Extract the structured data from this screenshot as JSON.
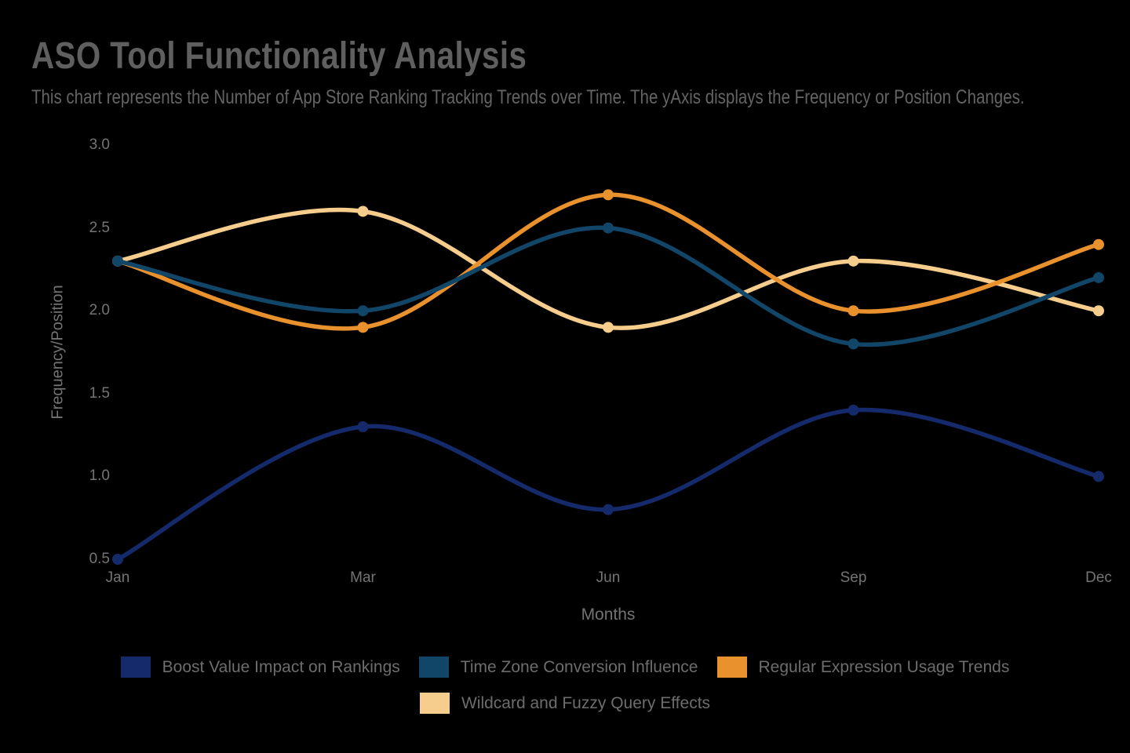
{
  "chart_data": {
    "type": "line",
    "title": "ASO Tool Functionality Analysis",
    "subtitle": "This chart represents the Number of App Store Ranking Tracking Trends over Time. The yAxis displays the Frequency or Position Changes.",
    "xlabel": "Months",
    "ylabel": "Frequency/Position",
    "categories": [
      "Jan",
      "Mar",
      "Jun",
      "Sep",
      "Dec"
    ],
    "series": [
      {
        "name": "Boost Value Impact on Rankings",
        "color": "#152A6B",
        "values": [
          0.5,
          1.3,
          0.8,
          1.4,
          1.0
        ]
      },
      {
        "name": "Time Zone Conversion Influence",
        "color": "#114668",
        "values": [
          2.3,
          2.0,
          2.5,
          1.8,
          2.2
        ]
      },
      {
        "name": "Regular Expression Usage Trends",
        "color": "#E8912D",
        "values": [
          2.3,
          1.9,
          2.7,
          2.0,
          2.4
        ]
      },
      {
        "name": "Wildcard and Fuzzy Query Effects",
        "color": "#F6CD8C",
        "values": [
          2.3,
          2.6,
          1.9,
          2.3,
          2.0
        ]
      }
    ],
    "ylim": [
      0.5,
      3.0
    ],
    "yticks": [
      3.0,
      2.5,
      2.0,
      1.5,
      1.0,
      0.5
    ],
    "ytick_labels": [
      "3.0",
      "2.5",
      "2.0",
      "1.5",
      "1.0",
      "0.5"
    ],
    "grid": false,
    "legend_position": "bottom",
    "colors": {
      "background": "#000000",
      "title_text": "#5F5F5F",
      "subtitle_text": "#646464",
      "axis_text": "#747474",
      "legend_text": "#6D6D6D"
    }
  }
}
